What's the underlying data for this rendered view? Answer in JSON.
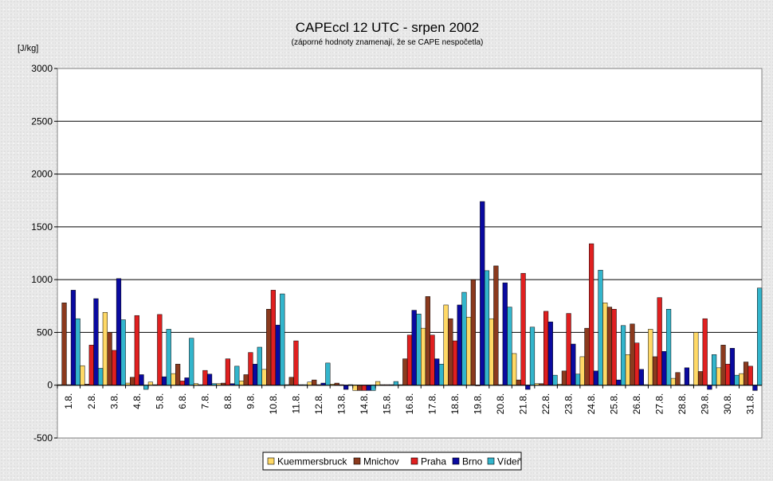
{
  "chart_data": {
    "type": "bar",
    "title": "CAPEccl 12 UTC - srpen 2002",
    "subtitle": "(záporné hodnoty znamenají, že se CAPE nespočetla)",
    "ylabel": "[J/kg]",
    "ylim": [
      -500,
      3000
    ],
    "yticks": [
      3000,
      2500,
      2000,
      1500,
      1000,
      500,
      0,
      -500
    ],
    "grid": true,
    "legend_position": "bottom",
    "categories": [
      "1.8.",
      "2.8.",
      "3.8.",
      "4.8.",
      "5.8.",
      "6.8.",
      "7.8.",
      "8.8.",
      "9.8.",
      "10.8.",
      "11.8.",
      "12.8.",
      "13.8.",
      "14.8.",
      "15.8.",
      "16.8.",
      "17.8.",
      "18.8.",
      "19.8.",
      "20.8.",
      "21.8.",
      "22.8.",
      "23.8.",
      "24.8.",
      "25.8.",
      "26.8.",
      "27.8.",
      "28.8.",
      "29.8.",
      "30.8.",
      "31.8."
    ],
    "series": [
      {
        "name": "Kuemmersbruck",
        "color": "#ffd966",
        "values": [
          5,
          185,
          690,
          20,
          30,
          110,
          15,
          15,
          40,
          150,
          5,
          30,
          10,
          -50,
          35,
          5,
          540,
          760,
          645,
          630,
          300,
          15,
          10,
          270,
          780,
          290,
          530,
          65,
          500,
          165,
          110
        ]
      },
      {
        "name": "Mnichov",
        "color": "#8b3a1e",
        "values": [
          780,
          10,
          500,
          75,
          5,
          200,
          5,
          20,
          100,
          720,
          75,
          50,
          20,
          -50,
          5,
          250,
          840,
          630,
          1000,
          1130,
          50,
          15,
          135,
          540,
          740,
          580,
          270,
          120,
          130,
          380,
          220
        ]
      },
      {
        "name": "Praha",
        "color": "#e02020",
        "values": [
          5,
          380,
          330,
          660,
          670,
          40,
          140,
          250,
          310,
          900,
          420,
          5,
          5,
          -50,
          5,
          475,
          475,
          420,
          0,
          5,
          1060,
          700,
          680,
          1340,
          720,
          400,
          830,
          5,
          630,
          200,
          180
        ]
      },
      {
        "name": "Brno",
        "color": "#0a0aa0",
        "values": [
          900,
          820,
          1010,
          100,
          80,
          70,
          105,
          15,
          200,
          570,
          5,
          20,
          -40,
          -50,
          5,
          710,
          250,
          760,
          1740,
          970,
          -40,
          600,
          390,
          135,
          50,
          150,
          320,
          165,
          -40,
          350,
          -50
        ]
      },
      {
        "name": "Vídeň",
        "color": "#33b5cc",
        "values": [
          630,
          160,
          620,
          -40,
          530,
          445,
          15,
          180,
          360,
          865,
          5,
          210,
          5,
          -50,
          35,
          675,
          200,
          880,
          1085,
          740,
          550,
          95,
          105,
          1090,
          565,
          5,
          720,
          5,
          290,
          95,
          920
        ]
      }
    ]
  }
}
